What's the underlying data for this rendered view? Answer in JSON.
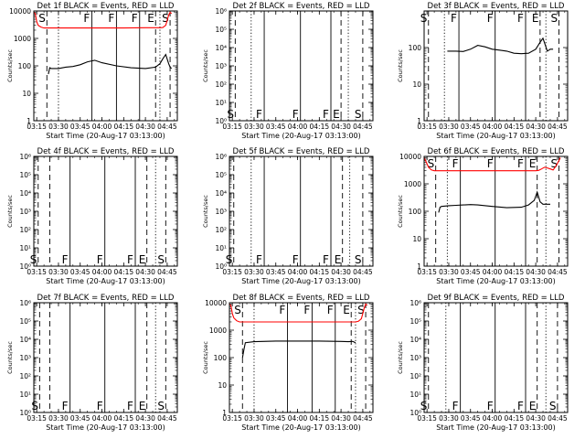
{
  "figure": {
    "colors": {
      "events": "#000000",
      "lld": "#ff0000",
      "axis": "#000000"
    },
    "line_styles": {
      "S": "dashed",
      "E": "dashed",
      "F": "solid",
      "dotted": "dotted"
    }
  },
  "chart_data": [
    {
      "type": "line",
      "title": "Det 1f BLACK = Events, RED = LLD",
      "xlabel": "Start Time (20-Aug-17 03:13:00)",
      "ylabel": "Counts/sec",
      "yscale": "log",
      "xlim": [
        "03:13:00",
        "04:52:00"
      ],
      "ylim": [
        1,
        10000
      ],
      "xticks": [
        "03:15",
        "03:30",
        "03:45",
        "04:00",
        "04:15",
        "04:30",
        "04:45"
      ],
      "yticks": [
        "1",
        "10",
        "100",
        "1000",
        "10000"
      ],
      "markers": [
        {
          "label": "S",
          "time": "03:22",
          "style": "dashed"
        },
        {
          "label": "",
          "time": "03:30",
          "style": "dotted"
        },
        {
          "label": "F",
          "time": "03:53",
          "style": "solid"
        },
        {
          "label": "F",
          "time": "04:10",
          "style": "solid"
        },
        {
          "label": "F",
          "time": "04:26",
          "style": "solid"
        },
        {
          "label": "E",
          "time": "04:37",
          "style": "dashed"
        },
        {
          "label": "",
          "time": "04:40",
          "style": "dotted"
        },
        {
          "label": "S",
          "time": "04:47",
          "style": "dashed"
        }
      ],
      "marker_label_position": "top",
      "series": [
        {
          "color": "#ff0000",
          "x": [
            "03:13",
            "03:14",
            "03:15",
            "03:16",
            "03:18",
            "03:20",
            "03:30",
            "03:45",
            "04:00",
            "04:15",
            "04:30",
            "04:40",
            "04:42",
            "04:44",
            "04:45",
            "04:46",
            "04:47",
            "04:48"
          ],
          "y": [
            9000,
            8000,
            4000,
            3000,
            2600,
            2400,
            2400,
            2400,
            2400,
            2400,
            2450,
            2450,
            2500,
            3000,
            4500,
            7000,
            9000,
            8000
          ]
        },
        {
          "color": "#000000",
          "x": [
            "03:23",
            "03:24",
            "03:25",
            "03:30",
            "03:35",
            "03:40",
            "03:45",
            "03:50",
            "03:55",
            "04:00",
            "04:10",
            "04:20",
            "04:30",
            "04:37",
            "04:40",
            "04:42",
            "04:44",
            "04:46",
            "04:47",
            "04:48"
          ],
          "y": [
            50,
            85,
            80,
            80,
            90,
            95,
            110,
            140,
            160,
            130,
            100,
            85,
            80,
            90,
            120,
            180,
            260,
            120,
            90,
            80
          ]
        }
      ]
    },
    {
      "type": "line",
      "title": "Det 2f BLACK = Events, RED = LLD",
      "xlabel": "Start Time (20-Aug-17 03:13:00)",
      "ylabel": "Counts/sec",
      "yscale": "log",
      "xlim": [
        "03:13:00",
        "04:52:00"
      ],
      "ylim": [
        1,
        1000000
      ],
      "xticks": [
        "03:15",
        "03:30",
        "03:45",
        "04:00",
        "04:15",
        "04:30",
        "04:45"
      ],
      "yticks": [
        "10⁰",
        "10¹",
        "10²",
        "10³",
        "10⁴",
        "10⁵",
        "10⁶"
      ],
      "markers": [
        {
          "label": "S",
          "time": "03:17",
          "style": "dashed"
        },
        {
          "label": "",
          "time": "03:28",
          "style": "dotted"
        },
        {
          "label": "F",
          "time": "03:37",
          "style": "solid"
        },
        {
          "label": "F",
          "time": "04:02",
          "style": "solid"
        },
        {
          "label": "F",
          "time": "04:23",
          "style": "solid"
        },
        {
          "label": "E",
          "time": "04:30",
          "style": "dashed"
        },
        {
          "label": "",
          "time": "04:35",
          "style": "dotted"
        },
        {
          "label": "S",
          "time": "04:45",
          "style": "dashed"
        }
      ],
      "marker_label_position": "bottom",
      "series": []
    },
    {
      "type": "line",
      "title": "Det 3f BLACK = Events, RED = LLD",
      "xlabel": "Start Time (20-Aug-17 03:13:00)",
      "ylabel": "Counts/sec",
      "yscale": "log",
      "xlim": [
        "03:13:00",
        "04:52:00"
      ],
      "ylim": [
        1,
        1000
      ],
      "xticks": [
        "03:15",
        "03:30",
        "03:45",
        "04:00",
        "04:15",
        "04:30",
        "04:45"
      ],
      "yticks": [
        "1",
        "10",
        "100"
      ],
      "markers": [
        {
          "label": "S",
          "time": "03:16",
          "style": "dashed"
        },
        {
          "label": "",
          "time": "03:27",
          "style": "dotted"
        },
        {
          "label": "F",
          "time": "03:37",
          "style": "solid"
        },
        {
          "label": "F",
          "time": "04:02",
          "style": "solid"
        },
        {
          "label": "F",
          "time": "04:23",
          "style": "solid"
        },
        {
          "label": "E",
          "time": "04:33",
          "style": "dashed"
        },
        {
          "label": "",
          "time": "04:37",
          "style": "dotted"
        },
        {
          "label": "S",
          "time": "04:46",
          "style": "dashed"
        }
      ],
      "marker_label_position": "top",
      "series": [
        {
          "color": "#000000",
          "x": [
            "03:29",
            "03:35",
            "03:40",
            "03:45",
            "03:50",
            "03:55",
            "04:00",
            "04:05",
            "04:10",
            "04:15",
            "04:20",
            "04:25",
            "04:30",
            "04:33",
            "04:35",
            "04:38",
            "04:40",
            "04:42"
          ],
          "y": [
            80,
            80,
            78,
            90,
            115,
            105,
            90,
            85,
            80,
            70,
            68,
            70,
            90,
            140,
            180,
            80,
            90,
            90
          ]
        }
      ]
    },
    {
      "type": "line",
      "title": "Det 4f BLACK = Events, RED = LLD",
      "xlabel": "Start Time (20-Aug-17 03:13:00)",
      "ylabel": "Counts/sec",
      "yscale": "log",
      "xlim": [
        "03:13:00",
        "04:52:00"
      ],
      "ylim": [
        1,
        1000000
      ],
      "xticks": [
        "03:15",
        "03:30",
        "03:45",
        "04:00",
        "04:15",
        "04:30",
        "04:45"
      ],
      "yticks": [
        "10⁰",
        "10¹",
        "10²",
        "10³",
        "10⁴",
        "10⁵",
        "10⁶"
      ],
      "markers": [
        {
          "label": "S",
          "time": "03:16",
          "style": "dashed"
        },
        {
          "label": "",
          "time": "03:24",
          "style": "dashed"
        },
        {
          "label": "F",
          "time": "03:38",
          "style": "solid"
        },
        {
          "label": "F",
          "time": "04:02",
          "style": "solid"
        },
        {
          "label": "F",
          "time": "04:23",
          "style": "solid"
        },
        {
          "label": "E",
          "time": "04:31",
          "style": "dashed"
        },
        {
          "label": "",
          "time": "04:37",
          "style": "dotted"
        },
        {
          "label": "S",
          "time": "04:44",
          "style": "dashed"
        }
      ],
      "marker_label_position": "bottom",
      "series": []
    },
    {
      "type": "line",
      "title": "Det 5f BLACK = Events, RED = LLD",
      "xlabel": "Start Time (20-Aug-17 03:13:00)",
      "ylabel": "Counts/sec",
      "yscale": "log",
      "xlim": [
        "03:13:00",
        "04:52:00"
      ],
      "ylim": [
        1,
        1000000
      ],
      "xticks": [
        "03:15",
        "03:30",
        "03:45",
        "04:00",
        "04:15",
        "04:30",
        "04:45"
      ],
      "yticks": [
        "10⁰",
        "10¹",
        "10²",
        "10³",
        "10⁴",
        "10⁵",
        "10⁶"
      ],
      "markers": [
        {
          "label": "S",
          "time": "03:16",
          "style": "dashed"
        },
        {
          "label": "",
          "time": "03:28",
          "style": "dotted"
        },
        {
          "label": "F",
          "time": "03:37",
          "style": "solid"
        },
        {
          "label": "F",
          "time": "04:02",
          "style": "solid"
        },
        {
          "label": "F",
          "time": "04:23",
          "style": "solid"
        },
        {
          "label": "E",
          "time": "04:31",
          "style": "dashed"
        },
        {
          "label": "",
          "time": "04:36",
          "style": "dotted"
        },
        {
          "label": "S",
          "time": "04:45",
          "style": "dashed"
        }
      ],
      "marker_label_position": "bottom",
      "series": []
    },
    {
      "type": "line",
      "title": "Det 6f BLACK = Events, RED = LLD",
      "xlabel": "Start Time (20-Aug-17 03:13:00)",
      "ylabel": "Counts/sec",
      "yscale": "log",
      "xlim": [
        "03:13:00",
        "04:52:00"
      ],
      "ylim": [
        1,
        10000
      ],
      "xticks": [
        "03:15",
        "03:30",
        "03:45",
        "04:00",
        "04:15",
        "04:30",
        "04:45"
      ],
      "yticks": [
        "1",
        "10",
        "100",
        "1000",
        "10000"
      ],
      "markers": [
        {
          "label": "S",
          "time": "03:21",
          "style": "dashed"
        },
        {
          "label": "",
          "time": "03:29",
          "style": "dotted"
        },
        {
          "label": "F",
          "time": "03:38",
          "style": "solid"
        },
        {
          "label": "F",
          "time": "04:02",
          "style": "solid"
        },
        {
          "label": "F",
          "time": "04:23",
          "style": "solid"
        },
        {
          "label": "E",
          "time": "04:31",
          "style": "dashed"
        },
        {
          "label": "",
          "time": "04:37",
          "style": "dotted"
        },
        {
          "label": "S",
          "time": "04:46",
          "style": "dashed"
        }
      ],
      "marker_label_position": "top",
      "series": [
        {
          "color": "#ff0000",
          "x": [
            "03:13",
            "03:14",
            "03:16",
            "03:18",
            "03:20",
            "03:30",
            "03:45",
            "04:00",
            "04:15",
            "04:30",
            "04:32",
            "04:34",
            "04:36",
            "04:38",
            "04:40",
            "04:42",
            "04:44",
            "04:46",
            "04:47"
          ],
          "y": [
            9000,
            7000,
            4000,
            3200,
            3000,
            3000,
            3000,
            3000,
            3000,
            3000,
            3100,
            3500,
            4000,
            3800,
            3500,
            3200,
            4500,
            7000,
            9000
          ]
        },
        {
          "color": "#000000",
          "x": [
            "03:23",
            "03:24",
            "03:25",
            "03:30",
            "03:35",
            "03:40",
            "03:45",
            "03:50",
            "04:00",
            "04:10",
            "04:20",
            "04:25",
            "04:29",
            "04:31",
            "04:33",
            "04:35",
            "04:40"
          ],
          "y": [
            90,
            140,
            150,
            160,
            165,
            170,
            175,
            170,
            150,
            135,
            140,
            170,
            250,
            500,
            220,
            180,
            180
          ]
        }
      ]
    },
    {
      "type": "line",
      "title": "Det 7f BLACK = Events, RED = LLD",
      "xlabel": "Start Time (20-Aug-17 03:13:00)",
      "ylabel": "Counts/sec",
      "yscale": "log",
      "xlim": [
        "03:13:00",
        "04:52:00"
      ],
      "ylim": [
        1,
        1000000
      ],
      "xticks": [
        "03:15",
        "03:30",
        "03:45",
        "04:00",
        "04:15",
        "04:30",
        "04:45"
      ],
      "yticks": [
        "10⁰",
        "10¹",
        "10²",
        "10³",
        "10⁴",
        "10⁵",
        "10⁶"
      ],
      "markers": [
        {
          "label": "S",
          "time": "03:17",
          "style": "dashed"
        },
        {
          "label": "",
          "time": "03:24",
          "style": "dashed"
        },
        {
          "label": "F",
          "time": "03:38",
          "style": "solid"
        },
        {
          "label": "F",
          "time": "04:02",
          "style": "solid"
        },
        {
          "label": "F",
          "time": "04:23",
          "style": "solid"
        },
        {
          "label": "E",
          "time": "04:31",
          "style": "dashed"
        },
        {
          "label": "",
          "time": "04:37",
          "style": "dotted"
        },
        {
          "label": "S",
          "time": "04:44",
          "style": "dashed"
        }
      ],
      "marker_label_position": "bottom",
      "series": []
    },
    {
      "type": "line",
      "title": "Det 8f BLACK = Events, RED = LLD",
      "xlabel": "Start Time (20-Aug-17 03:13:00)",
      "ylabel": "Counts/sec",
      "yscale": "log",
      "xlim": [
        "03:13:00",
        "04:52:00"
      ],
      "ylim": [
        1,
        10000
      ],
      "xticks": [
        "03:15",
        "03:30",
        "03:45",
        "04:00",
        "04:15",
        "04:30",
        "04:45"
      ],
      "yticks": [
        "1",
        "10",
        "100",
        "1000",
        "10000"
      ],
      "markers": [
        {
          "label": "S",
          "time": "03:22",
          "style": "dashed"
        },
        {
          "label": "",
          "time": "03:30",
          "style": "dotted"
        },
        {
          "label": "F",
          "time": "03:53",
          "style": "solid"
        },
        {
          "label": "F",
          "time": "04:10",
          "style": "solid"
        },
        {
          "label": "F",
          "time": "04:26",
          "style": "solid"
        },
        {
          "label": "E",
          "time": "04:37",
          "style": "dashed"
        },
        {
          "label": "",
          "time": "04:40",
          "style": "dotted"
        },
        {
          "label": "S",
          "time": "04:47",
          "style": "dashed"
        }
      ],
      "marker_label_position": "top",
      "series": [
        {
          "color": "#ff0000",
          "x": [
            "03:13",
            "03:14",
            "03:15",
            "03:16",
            "03:18",
            "03:20",
            "03:30",
            "03:45",
            "04:00",
            "04:15",
            "04:30",
            "04:40",
            "04:42",
            "04:44",
            "04:45",
            "04:46",
            "04:47",
            "04:48"
          ],
          "y": [
            9000,
            8000,
            4000,
            2800,
            2200,
            2000,
            2000,
            2000,
            2000,
            2000,
            2000,
            2000,
            2100,
            2600,
            4000,
            6500,
            9000,
            8000
          ]
        },
        {
          "color": "#000000",
          "x": [
            "03:22",
            "03:23",
            "03:24",
            "03:30",
            "03:45",
            "04:00",
            "04:15",
            "04:30",
            "04:35",
            "04:38",
            "04:40"
          ],
          "y": [
            100,
            200,
            350,
            380,
            400,
            400,
            400,
            390,
            380,
            390,
            350
          ]
        }
      ]
    },
    {
      "type": "line",
      "title": "Det 9f BLACK = Events, RED = LLD",
      "xlabel": "Start Time (20-Aug-17 03:13:00)",
      "ylabel": "Counts/sec",
      "yscale": "log",
      "xlim": [
        "03:13:00",
        "04:52:00"
      ],
      "ylim": [
        1,
        1000000
      ],
      "xticks": [
        "03:15",
        "03:30",
        "03:45",
        "04:00",
        "04:15",
        "04:30",
        "04:45"
      ],
      "yticks": [
        "10⁰",
        "10¹",
        "10²",
        "10³",
        "10⁴",
        "10⁵",
        "10⁶"
      ],
      "markers": [
        {
          "label": "S",
          "time": "03:16",
          "style": "dashed"
        },
        {
          "label": "",
          "time": "03:28",
          "style": "dotted"
        },
        {
          "label": "F",
          "time": "03:38",
          "style": "solid"
        },
        {
          "label": "F",
          "time": "04:02",
          "style": "solid"
        },
        {
          "label": "F",
          "time": "04:23",
          "style": "solid"
        },
        {
          "label": "E",
          "time": "04:31",
          "style": "dashed"
        },
        {
          "label": "",
          "time": "04:37",
          "style": "dotted"
        },
        {
          "label": "S",
          "time": "04:45",
          "style": "dashed"
        }
      ],
      "marker_label_position": "bottom",
      "series": []
    }
  ]
}
